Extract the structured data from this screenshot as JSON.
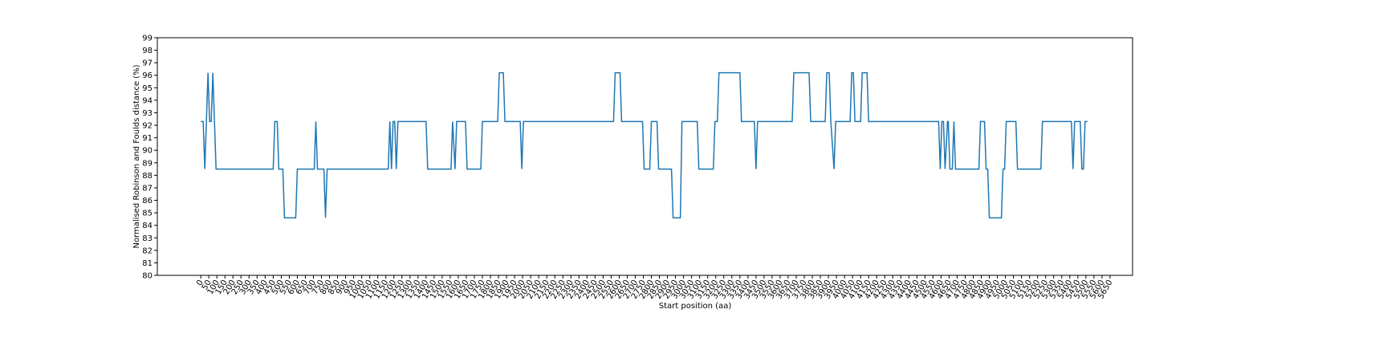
{
  "chart_data": {
    "type": "line",
    "xlabel": "Start position (aa)",
    "ylabel": "Normalised Robinson and Foulds distance (%)",
    "x": [
      0,
      15,
      25,
      45,
      55,
      65,
      75,
      95,
      450,
      460,
      475,
      485,
      510,
      520,
      590,
      600,
      705,
      715,
      725,
      765,
      775,
      785,
      1165,
      1175,
      1185,
      1195,
      1205,
      1215,
      1225,
      1400,
      1410,
      1555,
      1565,
      1580,
      1590,
      1645,
      1655,
      1740,
      1750,
      1845,
      1855,
      1880,
      1890,
      1985,
      1995,
      2005,
      2565,
      2575,
      2605,
      2615,
      2745,
      2755,
      2790,
      2800,
      2835,
      2845,
      2925,
      2935,
      2980,
      2990,
      3085,
      3095,
      3185,
      3195,
      3210,
      3220,
      3350,
      3360,
      3440,
      3450,
      3460,
      3675,
      3685,
      3780,
      3790,
      3880,
      3890,
      3905,
      3915,
      3935,
      3945,
      4035,
      4045,
      4055,
      4065,
      4100,
      4110,
      4140,
      4150,
      4585,
      4595,
      4605,
      4615,
      4625,
      4640,
      4645,
      4655,
      4670,
      4680,
      4690,
      4835,
      4845,
      4870,
      4880,
      4890,
      4900,
      4975,
      4985,
      4995,
      5005,
      5065,
      5075,
      5220,
      5230,
      5410,
      5420,
      5430,
      5465,
      5475,
      5485,
      5495,
      5510
    ],
    "series": [
      {
        "color": "#1f77b4",
        "values": [
          92.3,
          92.3,
          88.5,
          96.2,
          92.3,
          92.3,
          96.2,
          88.5,
          88.5,
          92.3,
          92.3,
          88.5,
          88.5,
          84.6,
          84.6,
          88.5,
          88.5,
          92.3,
          88.5,
          88.5,
          84.6,
          88.5,
          88.5,
          92.3,
          88.5,
          92.3,
          92.3,
          88.5,
          92.3,
          92.3,
          88.5,
          88.5,
          92.3,
          88.5,
          92.3,
          92.3,
          88.5,
          88.5,
          92.3,
          92.3,
          96.2,
          96.2,
          92.3,
          92.3,
          88.5,
          92.3,
          92.3,
          96.2,
          96.2,
          92.3,
          92.3,
          88.5,
          88.5,
          92.3,
          92.3,
          88.5,
          88.5,
          84.6,
          84.6,
          92.3,
          92.3,
          88.5,
          88.5,
          92.3,
          92.3,
          96.2,
          96.2,
          92.3,
          92.3,
          88.5,
          92.3,
          92.3,
          96.2,
          96.2,
          92.3,
          92.3,
          96.2,
          96.2,
          92.3,
          88.5,
          92.3,
          92.3,
          96.2,
          96.2,
          92.3,
          92.3,
          96.2,
          96.2,
          92.3,
          92.3,
          88.5,
          92.3,
          92.3,
          88.5,
          92.3,
          92.3,
          88.5,
          88.5,
          92.3,
          88.5,
          88.5,
          92.3,
          92.3,
          88.5,
          88.5,
          84.6,
          84.6,
          88.5,
          88.5,
          92.3,
          92.3,
          88.5,
          88.5,
          92.3,
          92.3,
          88.5,
          92.3,
          92.3,
          88.5,
          88.5,
          92.3,
          92.3
        ]
      }
    ],
    "xlim": [
      -270,
      5790
    ],
    "ylim": [
      80,
      99
    ],
    "xticks": [
      0,
      50,
      100,
      150,
      200,
      250,
      300,
      350,
      400,
      450,
      500,
      550,
      600,
      650,
      700,
      750,
      800,
      850,
      900,
      950,
      1000,
      1050,
      1100,
      1150,
      1200,
      1250,
      1300,
      1350,
      1400,
      1450,
      1500,
      1550,
      1600,
      1650,
      1700,
      1750,
      1800,
      1850,
      1900,
      1950,
      2000,
      2050,
      2100,
      2150,
      2200,
      2250,
      2300,
      2350,
      2400,
      2450,
      2500,
      2550,
      2600,
      2650,
      2700,
      2750,
      2800,
      2850,
      2900,
      2950,
      3000,
      3050,
      3100,
      3150,
      3200,
      3250,
      3300,
      3350,
      3400,
      3450,
      3500,
      3550,
      3600,
      3650,
      3700,
      3750,
      3800,
      3850,
      3900,
      3950,
      4000,
      4050,
      4100,
      4150,
      4200,
      4250,
      4300,
      4350,
      4400,
      4450,
      4500,
      4550,
      4600,
      4650,
      4700,
      4750,
      4800,
      4850,
      4900,
      4950,
      5000,
      5050,
      5100,
      5150,
      5200,
      5250,
      5300,
      5350,
      5400,
      5450,
      5500,
      5550,
      5600,
      5650
    ],
    "yticks": [
      80,
      81,
      82,
      83,
      84,
      85,
      86,
      87,
      88,
      89,
      90,
      91,
      92,
      93,
      94,
      95,
      96,
      97,
      98,
      99
    ]
  }
}
